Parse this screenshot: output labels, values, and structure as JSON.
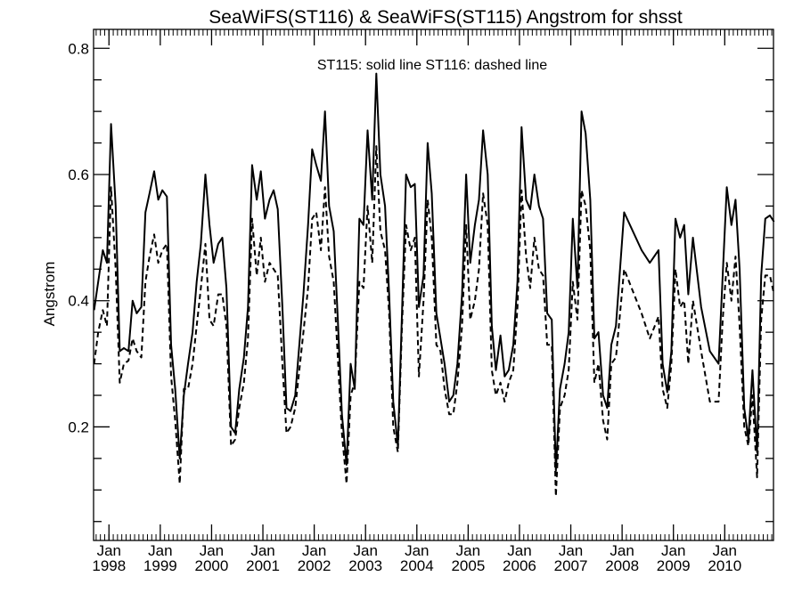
{
  "chart_data": {
    "type": "line",
    "title": "SeaWiFS(ST116) & SeaWiFS(ST115)  Angstrom for shsst",
    "annotation": "ST115: solid line   ST116: dashed line",
    "ylabel": "Angstrom",
    "xlabel": "",
    "ylim": [
      0.02,
      0.83
    ],
    "xlim": [
      1997.7,
      2010.95
    ],
    "yticks": [
      0.2,
      0.4,
      0.6,
      0.8
    ],
    "ytick_labels": [
      "0.2",
      "0.4",
      "0.6",
      "0.8"
    ],
    "xticks": [
      {
        "month": "Jan",
        "year": "1998"
      },
      {
        "month": "Jan",
        "year": "1999"
      },
      {
        "month": "Jan",
        "year": "2000"
      },
      {
        "month": "Jan",
        "year": "2001"
      },
      {
        "month": "Jan",
        "year": "2002"
      },
      {
        "month": "Jan",
        "year": "2003"
      },
      {
        "month": "Jan",
        "year": "2004"
      },
      {
        "month": "Jan",
        "year": "2005"
      },
      {
        "month": "Jan",
        "year": "2006"
      },
      {
        "month": "Jan",
        "year": "2007"
      },
      {
        "month": "Jan",
        "year": "2008"
      },
      {
        "month": "Jan",
        "year": "2009"
      },
      {
        "month": "Jan",
        "year": "2010"
      }
    ],
    "series": [
      {
        "name": "ST115",
        "style": "solid",
        "x": [
          1997.71,
          1997.79,
          1997.88,
          1997.96,
          1998.04,
          1998.13,
          1998.21,
          1998.29,
          1998.38,
          1998.46,
          1998.54,
          1998.63,
          1998.71,
          1998.79,
          1998.88,
          1998.96,
          1999.04,
          1999.13,
          1999.21,
          1999.29,
          1999.38,
          1999.46,
          1999.54,
          1999.63,
          1999.71,
          1999.79,
          1999.88,
          1999.96,
          2000.04,
          2000.13,
          2000.21,
          2000.29,
          2000.38,
          2000.46,
          2000.54,
          2000.63,
          2000.71,
          2000.79,
          2000.88,
          2000.96,
          2001.04,
          2001.13,
          2001.21,
          2001.29,
          2001.38,
          2001.46,
          2001.54,
          2001.63,
          2001.71,
          2001.79,
          2001.88,
          2001.96,
          2002.04,
          2002.13,
          2002.21,
          2002.29,
          2002.38,
          2002.46,
          2002.54,
          2002.63,
          2002.71,
          2002.79,
          2002.88,
          2002.96,
          2003.04,
          2003.13,
          2003.21,
          2003.29,
          2003.38,
          2003.46,
          2003.54,
          2003.63,
          2003.71,
          2003.79,
          2003.88,
          2003.96,
          2004.04,
          2004.13,
          2004.21,
          2004.29,
          2004.38,
          2004.46,
          2004.54,
          2004.63,
          2004.71,
          2004.79,
          2004.88,
          2004.96,
          2005.04,
          2005.13,
          2005.21,
          2005.29,
          2005.38,
          2005.46,
          2005.54,
          2005.63,
          2005.71,
          2005.79,
          2005.88,
          2005.96,
          2006.04,
          2006.13,
          2006.21,
          2006.29,
          2006.38,
          2006.46,
          2006.54,
          2006.63,
          2006.71,
          2006.79,
          2006.88,
          2006.96,
          2007.04,
          2007.13,
          2007.21,
          2007.29,
          2007.38,
          2007.46,
          2007.54,
          2007.63,
          2007.71,
          2007.79,
          2007.88,
          2008.04,
          2008.38,
          2008.54,
          2008.71,
          2008.79,
          2008.88,
          2008.96,
          2009.04,
          2009.13,
          2009.21,
          2009.29,
          2009.38,
          2009.54,
          2009.71,
          2009.88,
          2009.96,
          2010.04,
          2010.13,
          2010.21,
          2010.29,
          2010.38,
          2010.46,
          2010.54,
          2010.63,
          2010.71,
          2010.79,
          2010.88,
          2010.96
        ],
        "y": [
          0.385,
          0.43,
          0.48,
          0.46,
          0.68,
          0.55,
          0.32,
          0.325,
          0.32,
          0.4,
          0.38,
          0.39,
          0.54,
          0.57,
          0.605,
          0.56,
          0.575,
          0.565,
          0.33,
          0.26,
          0.15,
          0.25,
          0.3,
          0.35,
          0.43,
          0.49,
          0.6,
          0.52,
          0.46,
          0.49,
          0.5,
          0.42,
          0.2,
          0.19,
          0.26,
          0.31,
          0.39,
          0.615,
          0.56,
          0.605,
          0.53,
          0.56,
          0.575,
          0.545,
          0.39,
          0.23,
          0.225,
          0.25,
          0.33,
          0.41,
          0.52,
          0.64,
          0.615,
          0.59,
          0.7,
          0.55,
          0.51,
          0.37,
          0.22,
          0.14,
          0.3,
          0.26,
          0.53,
          0.52,
          0.67,
          0.56,
          0.76,
          0.6,
          0.55,
          0.41,
          0.24,
          0.17,
          0.38,
          0.6,
          0.58,
          0.585,
          0.39,
          0.44,
          0.65,
          0.57,
          0.38,
          0.34,
          0.3,
          0.24,
          0.25,
          0.3,
          0.41,
          0.6,
          0.46,
          0.52,
          0.56,
          0.67,
          0.6,
          0.36,
          0.29,
          0.345,
          0.28,
          0.29,
          0.33,
          0.43,
          0.675,
          0.56,
          0.545,
          0.6,
          0.55,
          0.53,
          0.38,
          0.37,
          0.13,
          0.26,
          0.3,
          0.35,
          0.53,
          0.42,
          0.7,
          0.665,
          0.56,
          0.34,
          0.35,
          0.25,
          0.23,
          0.33,
          0.36,
          0.54,
          0.48,
          0.46,
          0.48,
          0.3,
          0.255,
          0.32,
          0.53,
          0.5,
          0.52,
          0.41,
          0.5,
          0.39,
          0.32,
          0.3,
          0.44,
          0.58,
          0.52,
          0.56,
          0.45,
          0.23,
          0.18,
          0.29,
          0.16,
          0.44,
          0.53,
          0.535,
          0.525
        ]
      },
      {
        "name": "ST116",
        "style": "dashed",
        "x": [
          1997.71,
          1997.79,
          1997.88,
          1997.96,
          1998.04,
          1998.13,
          1998.21,
          1998.29,
          1998.38,
          1998.46,
          1998.54,
          1998.63,
          1998.71,
          1998.79,
          1998.88,
          1998.96,
          1999.04,
          1999.13,
          1999.21,
          1999.29,
          1999.38,
          1999.46,
          1999.54,
          1999.63,
          1999.71,
          1999.79,
          1999.88,
          1999.96,
          2000.04,
          2000.13,
          2000.21,
          2000.29,
          2000.38,
          2000.46,
          2000.54,
          2000.63,
          2000.71,
          2000.79,
          2000.88,
          2000.96,
          2001.04,
          2001.13,
          2001.21,
          2001.29,
          2001.38,
          2001.46,
          2001.54,
          2001.63,
          2001.71,
          2001.79,
          2001.88,
          2001.96,
          2002.04,
          2002.13,
          2002.21,
          2002.29,
          2002.38,
          2002.46,
          2002.54,
          2002.63,
          2002.71,
          2002.79,
          2002.88,
          2002.96,
          2003.04,
          2003.13,
          2003.21,
          2003.29,
          2003.38,
          2003.46,
          2003.54,
          2003.63,
          2003.71,
          2003.79,
          2003.88,
          2003.96,
          2004.04,
          2004.13,
          2004.21,
          2004.29,
          2004.38,
          2004.46,
          2004.54,
          2004.63,
          2004.71,
          2004.79,
          2004.88,
          2004.96,
          2005.04,
          2005.13,
          2005.21,
          2005.29,
          2005.38,
          2005.46,
          2005.54,
          2005.63,
          2005.71,
          2005.79,
          2005.88,
          2005.96,
          2006.04,
          2006.13,
          2006.21,
          2006.29,
          2006.38,
          2006.46,
          2006.54,
          2006.63,
          2006.71,
          2006.79,
          2006.88,
          2006.96,
          2007.04,
          2007.13,
          2007.21,
          2007.29,
          2007.38,
          2007.46,
          2007.54,
          2007.63,
          2007.71,
          2007.79,
          2007.88,
          2008.04,
          2008.38,
          2008.54,
          2008.71,
          2008.79,
          2008.88,
          2008.96,
          2009.04,
          2009.13,
          2009.21,
          2009.29,
          2009.38,
          2009.54,
          2009.71,
          2009.88,
          2009.96,
          2010.04,
          2010.13,
          2010.21,
          2010.29,
          2010.38,
          2010.46,
          2010.54,
          2010.63,
          2010.71,
          2010.79,
          2010.88,
          2010.96
        ],
        "y": [
          0.3,
          0.35,
          0.385,
          0.36,
          0.58,
          0.45,
          0.27,
          0.3,
          0.305,
          0.34,
          0.32,
          0.31,
          0.43,
          0.47,
          0.505,
          0.46,
          0.48,
          0.49,
          0.28,
          0.21,
          0.11,
          0.26,
          0.26,
          0.3,
          0.36,
          0.42,
          0.49,
          0.37,
          0.36,
          0.41,
          0.41,
          0.36,
          0.17,
          0.18,
          0.23,
          0.27,
          0.34,
          0.53,
          0.44,
          0.5,
          0.43,
          0.46,
          0.45,
          0.44,
          0.3,
          0.19,
          0.2,
          0.23,
          0.29,
          0.35,
          0.42,
          0.53,
          0.54,
          0.48,
          0.58,
          0.47,
          0.43,
          0.31,
          0.19,
          0.11,
          0.25,
          0.27,
          0.43,
          0.42,
          0.55,
          0.46,
          0.645,
          0.51,
          0.48,
          0.38,
          0.2,
          0.16,
          0.36,
          0.52,
          0.48,
          0.5,
          0.28,
          0.4,
          0.56,
          0.5,
          0.33,
          0.32,
          0.26,
          0.22,
          0.22,
          0.27,
          0.36,
          0.52,
          0.37,
          0.4,
          0.45,
          0.57,
          0.52,
          0.29,
          0.25,
          0.27,
          0.24,
          0.27,
          0.29,
          0.39,
          0.575,
          0.47,
          0.42,
          0.5,
          0.45,
          0.44,
          0.33,
          0.33,
          0.09,
          0.23,
          0.25,
          0.29,
          0.43,
          0.37,
          0.575,
          0.55,
          0.48,
          0.27,
          0.3,
          0.21,
          0.18,
          0.3,
          0.31,
          0.45,
          0.38,
          0.34,
          0.375,
          0.26,
          0.23,
          0.3,
          0.45,
          0.39,
          0.4,
          0.3,
          0.4,
          0.32,
          0.24,
          0.24,
          0.37,
          0.46,
          0.4,
          0.47,
          0.36,
          0.2,
          0.17,
          0.25,
          0.12,
          0.37,
          0.44,
          0.44,
          0.41
        ]
      }
    ]
  }
}
